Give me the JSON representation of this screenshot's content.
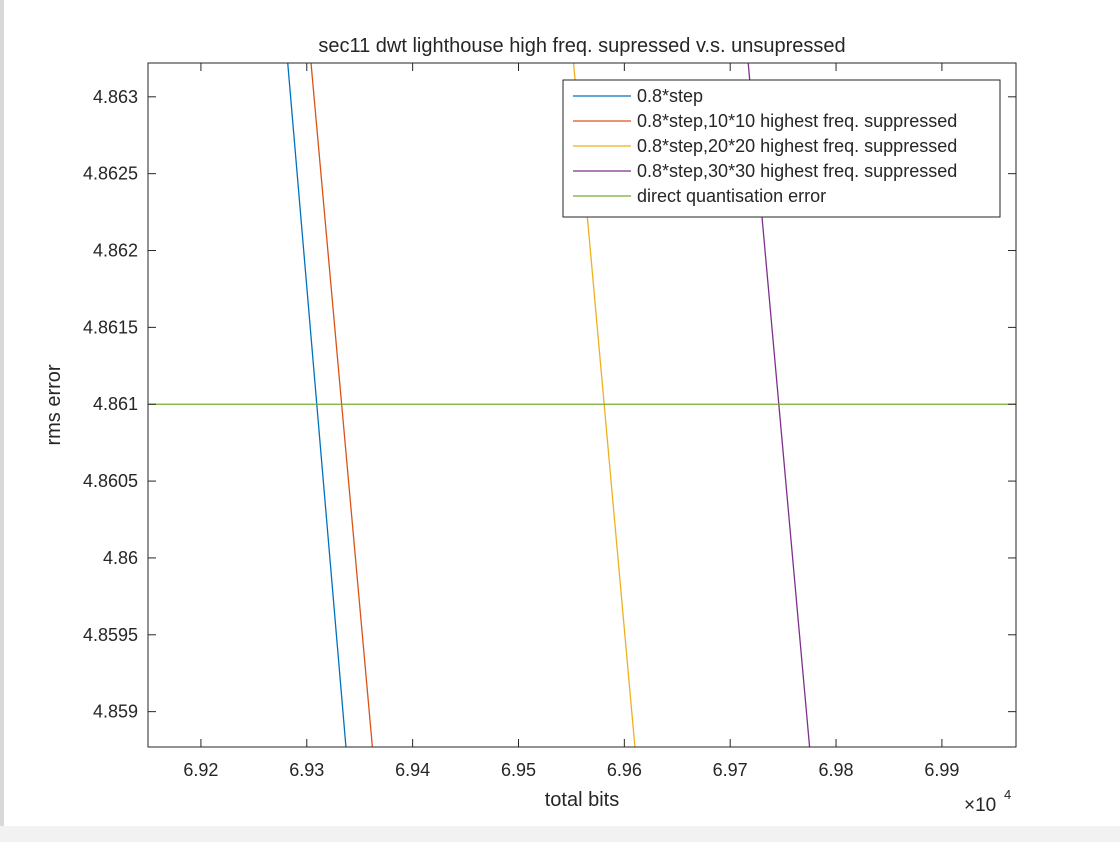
{
  "chart_data": {
    "type": "line",
    "title": "sec11 dwt lighthouse high freq. supressed v.s. unsupressed",
    "xlabel": "total bits",
    "ylabel": "rms error",
    "x_exponent_label": "×10",
    "x_exponent_power": "4",
    "xlim": [
      6.915,
      6.997
    ],
    "ylim": [
      4.85877,
      4.86322
    ],
    "x_ticks": [
      6.92,
      6.93,
      6.94,
      6.95,
      6.96,
      6.97,
      6.98,
      6.99
    ],
    "x_tick_labels": [
      "6.92",
      "6.93",
      "6.94",
      "6.95",
      "6.96",
      "6.97",
      "6.98",
      "6.99"
    ],
    "y_ticks": [
      4.859,
      4.8595,
      4.86,
      4.8605,
      4.861,
      4.8615,
      4.862,
      4.8625,
      4.863
    ],
    "y_tick_labels": [
      "4.859",
      "4.8595",
      "4.86",
      "4.8605",
      "4.861",
      "4.8615",
      "4.862",
      "4.8625",
      "4.863"
    ],
    "grid": false,
    "legend_position": "top-right",
    "series": [
      {
        "name": "0.8*step",
        "color": "#0072BD",
        "x": [
          6.9282,
          6.9337
        ],
        "y": [
          4.86322,
          4.85877
        ]
      },
      {
        "name": "0.8*step,10*10 highest freq. suppressed",
        "color": "#D95319",
        "x": [
          6.9304,
          6.9362
        ],
        "y": [
          4.86322,
          4.85877
        ]
      },
      {
        "name": "0.8*step,20*20 highest freq. suppressed",
        "color": "#EDB120",
        "x": [
          6.9552,
          6.961
        ],
        "y": [
          4.86322,
          4.85877
        ]
      },
      {
        "name": "0.8*step,30*30 highest freq. suppressed",
        "color": "#7E2F8E",
        "x": [
          6.9717,
          6.9775
        ],
        "y": [
          4.86322,
          4.85877
        ]
      },
      {
        "name": "direct quantisation error",
        "color": "#77AC30",
        "x": [
          6.915,
          6.997
        ],
        "y": [
          4.861,
          4.861
        ]
      }
    ]
  }
}
